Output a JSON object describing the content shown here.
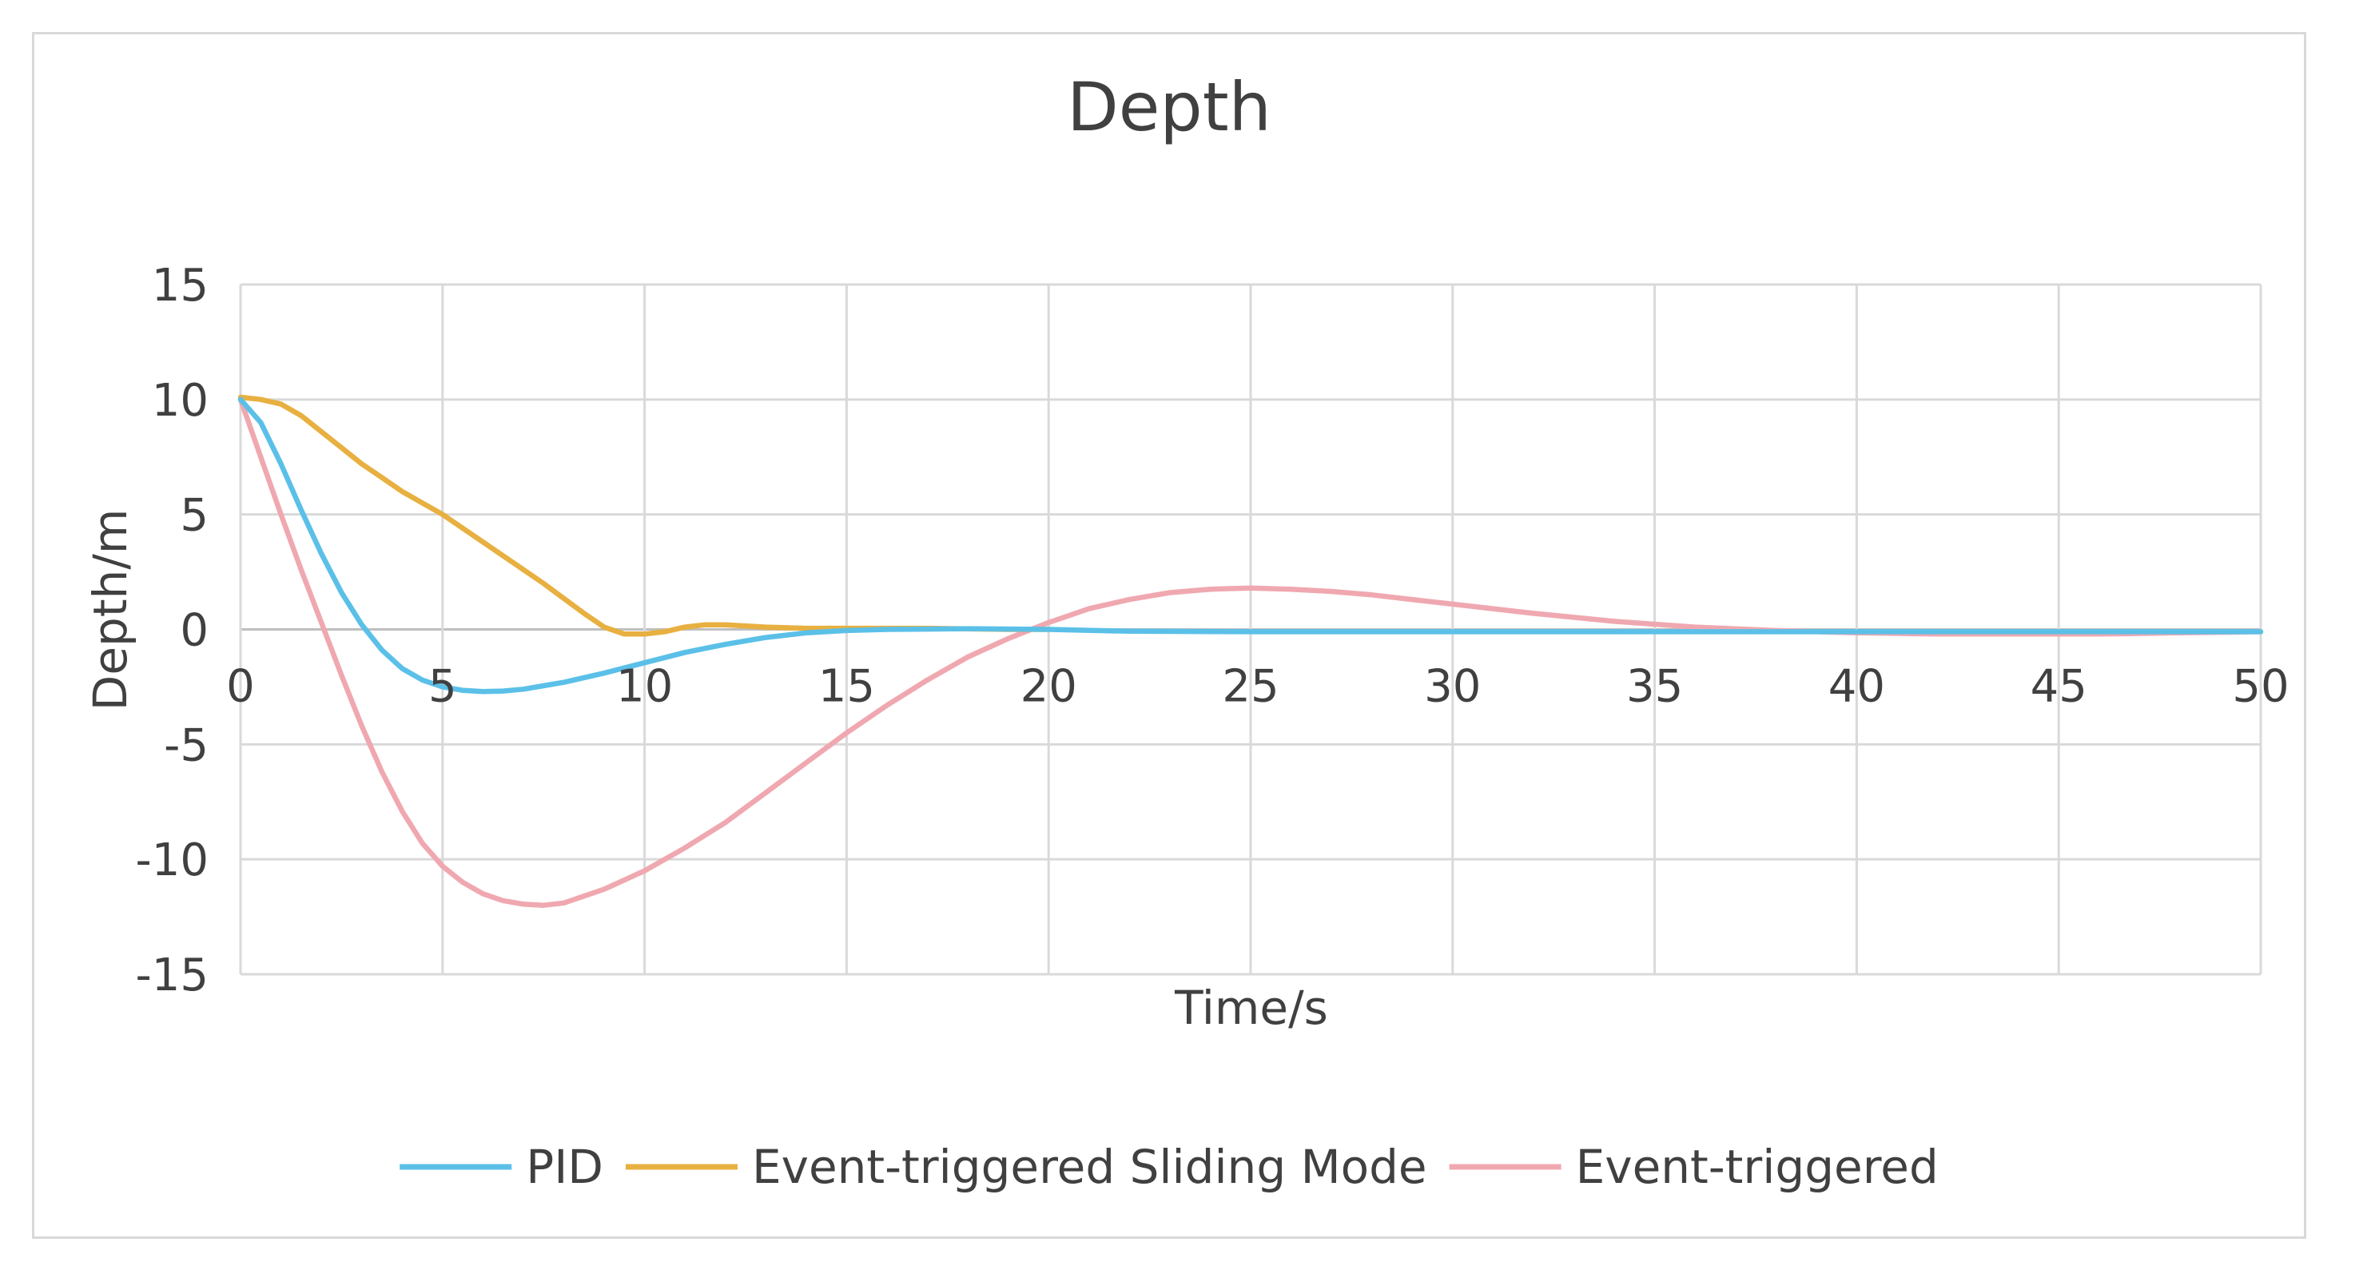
{
  "chart_data": {
    "type": "line",
    "title": "Depth",
    "xlabel": "Time/s",
    "ylabel": "Depth/m",
    "xlim": [
      0,
      50
    ],
    "ylim": [
      -15,
      15
    ],
    "x_ticks": [
      "0",
      "5",
      "10",
      "15",
      "20",
      "25",
      "30",
      "35",
      "40",
      "45",
      "50"
    ],
    "y_ticks": [
      "15",
      "10",
      "5",
      "0",
      "-5",
      "-10",
      "-15"
    ],
    "grid": true,
    "legend_position": "bottom",
    "series": [
      {
        "name": "PID",
        "color": "#5bc0e8",
        "points": [
          [
            0,
            10
          ],
          [
            0.5,
            9
          ],
          [
            1,
            7.2
          ],
          [
            1.5,
            5.2
          ],
          [
            2,
            3.3
          ],
          [
            2.5,
            1.6
          ],
          [
            3,
            0.2
          ],
          [
            3.5,
            -0.9
          ],
          [
            4,
            -1.7
          ],
          [
            4.5,
            -2.2
          ],
          [
            5,
            -2.5
          ],
          [
            5.5,
            -2.65
          ],
          [
            6,
            -2.7
          ],
          [
            6.5,
            -2.68
          ],
          [
            7,
            -2.6
          ],
          [
            7.5,
            -2.45
          ],
          [
            8,
            -2.3
          ],
          [
            9,
            -1.9
          ],
          [
            10,
            -1.45
          ],
          [
            11,
            -1.0
          ],
          [
            12,
            -0.65
          ],
          [
            13,
            -0.35
          ],
          [
            14,
            -0.15
          ],
          [
            15,
            -0.05
          ],
          [
            16,
            0
          ],
          [
            18,
            0.03
          ],
          [
            20,
            0
          ],
          [
            22,
            -0.08
          ],
          [
            25,
            -0.1
          ],
          [
            30,
            -0.1
          ],
          [
            35,
            -0.1
          ],
          [
            40,
            -0.1
          ],
          [
            45,
            -0.1
          ],
          [
            50,
            -0.1
          ]
        ]
      },
      {
        "name": "Event-triggered Sliding Mode",
        "color": "#e8b040",
        "points": [
          [
            0,
            10.1
          ],
          [
            0.5,
            10
          ],
          [
            1,
            9.8
          ],
          [
            1.5,
            9.3
          ],
          [
            2,
            8.6
          ],
          [
            2.5,
            7.9
          ],
          [
            3,
            7.2
          ],
          [
            3.5,
            6.6
          ],
          [
            4,
            6.0
          ],
          [
            4.5,
            5.5
          ],
          [
            5,
            5.0
          ],
          [
            5.5,
            4.4
          ],
          [
            6,
            3.8
          ],
          [
            6.5,
            3.2
          ],
          [
            7,
            2.6
          ],
          [
            7.5,
            2.0
          ],
          [
            8,
            1.35
          ],
          [
            8.5,
            0.7
          ],
          [
            9,
            0.1
          ],
          [
            9.5,
            -0.2
          ],
          [
            10,
            -0.2
          ],
          [
            10.5,
            -0.1
          ],
          [
            11,
            0.1
          ],
          [
            11.5,
            0.2
          ],
          [
            12,
            0.2
          ],
          [
            13,
            0.1
          ],
          [
            14,
            0.05
          ],
          [
            15,
            0.05
          ],
          [
            17,
            0.05
          ],
          [
            19,
            0
          ],
          [
            20,
            0
          ]
        ]
      },
      {
        "name": "Event-triggered",
        "color": "#f0a8b0",
        "points": [
          [
            0,
            10
          ],
          [
            0.5,
            7.5
          ],
          [
            1,
            5
          ],
          [
            1.5,
            2.6
          ],
          [
            2,
            0.3
          ],
          [
            2.5,
            -2
          ],
          [
            3,
            -4.2
          ],
          [
            3.5,
            -6.2
          ],
          [
            4,
            -7.9
          ],
          [
            4.5,
            -9.3
          ],
          [
            5,
            -10.3
          ],
          [
            5.5,
            -11
          ],
          [
            6,
            -11.5
          ],
          [
            6.5,
            -11.8
          ],
          [
            7,
            -11.95
          ],
          [
            7.5,
            -12
          ],
          [
            8,
            -11.9
          ],
          [
            8.5,
            -11.6
          ],
          [
            9,
            -11.3
          ],
          [
            9.5,
            -10.9
          ],
          [
            10,
            -10.5
          ],
          [
            11,
            -9.5
          ],
          [
            12,
            -8.4
          ],
          [
            13,
            -7.1
          ],
          [
            14,
            -5.8
          ],
          [
            15,
            -4.5
          ],
          [
            16,
            -3.3
          ],
          [
            17,
            -2.2
          ],
          [
            18,
            -1.2
          ],
          [
            19,
            -0.4
          ],
          [
            20,
            0.3
          ],
          [
            21,
            0.9
          ],
          [
            22,
            1.3
          ],
          [
            23,
            1.6
          ],
          [
            24,
            1.75
          ],
          [
            25,
            1.8
          ],
          [
            26,
            1.75
          ],
          [
            27,
            1.65
          ],
          [
            28,
            1.5
          ],
          [
            29,
            1.3
          ],
          [
            30,
            1.1
          ],
          [
            32,
            0.7
          ],
          [
            34,
            0.35
          ],
          [
            36,
            0.1
          ],
          [
            38,
            -0.05
          ],
          [
            40,
            -0.15
          ],
          [
            42,
            -0.2
          ],
          [
            44,
            -0.2
          ],
          [
            46,
            -0.2
          ],
          [
            48,
            -0.15
          ],
          [
            50,
            -0.1
          ]
        ]
      }
    ]
  }
}
